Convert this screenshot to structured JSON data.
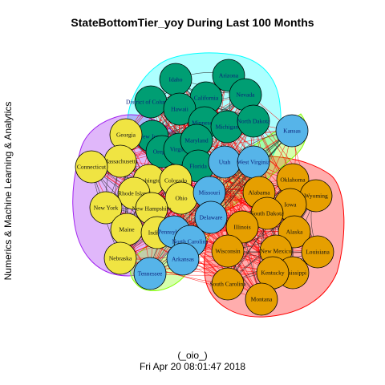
{
  "title": "StateBottomTier_yoy During Last 100 Months",
  "ylabel": "Numerics & Machine Learning & Analytics",
  "footer_line1": "(_oio_)",
  "footer_line2": "Fri Apr 20 08:01:47 2018",
  "colors": {
    "green": "#009E73",
    "yellow": "#F0E442",
    "blue": "#56B4E9",
    "orange": "#E69F00",
    "hull_cyan": "#00FFFF",
    "hull_purple": "#A020F0",
    "hull_red": "#FF0000",
    "hull_lime": "#80FF00",
    "edge_red": "#FF0000",
    "edge_dark": "#222222"
  },
  "clusters": [
    {
      "id": "green",
      "color": "green",
      "hull": "hull_cyan"
    },
    {
      "id": "yellow",
      "color": "yellow",
      "hull": "hull_purple"
    },
    {
      "id": "orange",
      "color": "orange",
      "hull": "hull_red"
    },
    {
      "id": "blue",
      "color": "blue",
      "hull": "hull_lime"
    }
  ],
  "nodes": [
    {
      "label": "Idaho",
      "cluster": "green"
    },
    {
      "label": "Arizona",
      "cluster": "green"
    },
    {
      "label": "Nevada",
      "cluster": "green"
    },
    {
      "label": "District of Columbia",
      "cluster": "green"
    },
    {
      "label": "California",
      "cluster": "green"
    },
    {
      "label": "Hawaii",
      "cluster": "green"
    },
    {
      "label": "Minnesota",
      "cluster": "green"
    },
    {
      "label": "Michigan",
      "cluster": "green"
    },
    {
      "label": "North Dakota",
      "cluster": "green"
    },
    {
      "label": "New Jersey",
      "cluster": "green"
    },
    {
      "label": "Oregon",
      "cluster": "green"
    },
    {
      "label": "Virginia",
      "cluster": "green"
    },
    {
      "label": "Maryland",
      "cluster": "green"
    },
    {
      "label": "Florida",
      "cluster": "green"
    },
    {
      "label": "Georgia",
      "cluster": "yellow"
    },
    {
      "label": "Massachusetts",
      "cluster": "yellow"
    },
    {
      "label": "Connecticut",
      "cluster": "yellow"
    },
    {
      "label": "Washington",
      "cluster": "yellow"
    },
    {
      "label": "Colorado",
      "cluster": "yellow"
    },
    {
      "label": "Rhode Island",
      "cluster": "yellow"
    },
    {
      "label": "Ohio",
      "cluster": "yellow"
    },
    {
      "label": "New York",
      "cluster": "yellow"
    },
    {
      "label": "New Hampshire",
      "cluster": "yellow"
    },
    {
      "label": "Maine",
      "cluster": "yellow"
    },
    {
      "label": "Indiana",
      "cluster": "yellow"
    },
    {
      "label": "Nebraska",
      "cluster": "yellow"
    },
    {
      "label": "Kansas",
      "cluster": "blue"
    },
    {
      "label": "Utah",
      "cluster": "blue"
    },
    {
      "label": "West Virginia",
      "cluster": "blue"
    },
    {
      "label": "Missouri",
      "cluster": "blue"
    },
    {
      "label": "Delaware",
      "cluster": "blue"
    },
    {
      "label": "Pennsylvania",
      "cluster": "blue"
    },
    {
      "label": "North Carolina",
      "cluster": "blue"
    },
    {
      "label": "Arkansas",
      "cluster": "blue"
    },
    {
      "label": "Tennessee",
      "cluster": "blue"
    },
    {
      "label": "Oklahoma",
      "cluster": "orange"
    },
    {
      "label": "Wyoming",
      "cluster": "orange"
    },
    {
      "label": "Alabama",
      "cluster": "orange"
    },
    {
      "label": "Iowa",
      "cluster": "orange"
    },
    {
      "label": "South Dakota",
      "cluster": "orange"
    },
    {
      "label": "Illinois",
      "cluster": "orange"
    },
    {
      "label": "Alaska",
      "cluster": "orange"
    },
    {
      "label": "Louisiana",
      "cluster": "orange"
    },
    {
      "label": "Wisconsin",
      "cluster": "orange"
    },
    {
      "label": "New Mexico",
      "cluster": "orange"
    },
    {
      "label": "Mississippi",
      "cluster": "orange"
    },
    {
      "label": "Kentucky",
      "cluster": "orange"
    },
    {
      "label": "South Carolina",
      "cluster": "orange"
    },
    {
      "label": "Montana",
      "cluster": "orange"
    }
  ]
}
